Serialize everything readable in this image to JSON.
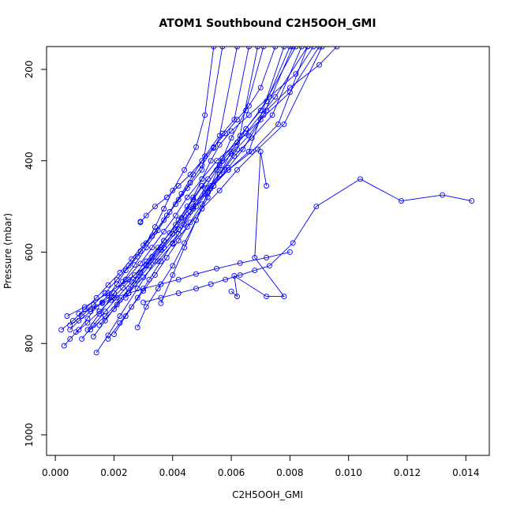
{
  "chart_data": {
    "type": "line",
    "title": "ATOM1 Southbound C2H5OOH_GMI",
    "xlabel": "C2H5OOH_GMI",
    "ylabel": "Pressure (mbar)",
    "x_ticks": [
      "0.000",
      "0.002",
      "0.004",
      "0.006",
      "0.008",
      "0.010",
      "0.012",
      "0.014"
    ],
    "y_ticks": [
      "200",
      "400",
      "600",
      "800",
      "1000"
    ],
    "xlim": [
      -0.0003,
      0.0148
    ],
    "ylim": [
      1045,
      150
    ],
    "y_reversed": true,
    "grid": false,
    "legend": "none",
    "markers": "open-circle",
    "series": [
      {
        "color": "#0000ff",
        "x": [
          0.0014,
          0.0018,
          0.0022,
          0.0028,
          0.0034,
          0.0042,
          0.0047,
          0.0051,
          0.0055,
          0.006,
          0.0066,
          0.0072,
          0.008,
          0.009,
          0.0096
        ],
        "y": [
          820,
          782,
          740,
          680,
          620,
          560,
          500,
          460,
          420,
          385,
          345,
          290,
          240,
          190,
          150
        ]
      },
      {
        "color": "#0000ff",
        "x": [
          0.0003,
          0.0005,
          0.0008,
          0.0011,
          0.0014,
          0.0018,
          0.0021,
          0.0024,
          0.0028,
          0.0031,
          0.0034,
          0.0037,
          0.004,
          0.0044,
          0.0048,
          0.0051,
          0.0054
        ],
        "y": [
          805,
          790,
          770,
          745,
          720,
          695,
          670,
          640,
          610,
          580,
          545,
          505,
          465,
          420,
          370,
          300,
          150
        ]
      },
      {
        "color": "#0000ff",
        "x": [
          0.0005,
          0.0008,
          0.0012,
          0.0016,
          0.002,
          0.0024,
          0.0029,
          0.0033,
          0.0037,
          0.0041,
          0.0045,
          0.005,
          0.0055,
          0.0062,
          0.007,
          0.008,
          0.009
        ],
        "y": [
          770,
          750,
          730,
          710,
          690,
          660,
          625,
          590,
          555,
          520,
          480,
          440,
          400,
          360,
          310,
          250,
          150
        ]
      },
      {
        "color": "#0000ff",
        "x": [
          0.0004,
          0.001,
          0.0018,
          0.0025,
          0.0031,
          0.0036,
          0.004,
          0.0044,
          0.0047,
          0.005,
          0.0053,
          0.0056,
          0.006,
          0.0066,
          0.0073,
          0.0082,
          0.0088
        ],
        "y": [
          740,
          720,
          690,
          660,
          630,
          595,
          560,
          520,
          480,
          440,
          400,
          365,
          335,
          300,
          260,
          210,
          150
        ]
      },
      {
        "color": "#0000ff",
        "x": [
          0.0013,
          0.0017,
          0.0021,
          0.0025,
          0.0029,
          0.0033,
          0.0037,
          0.0041,
          0.0045,
          0.005,
          0.0057,
          0.0065,
          0.0075,
          0.0086
        ],
        "y": [
          785,
          750,
          715,
          680,
          645,
          610,
          575,
          540,
          500,
          455,
          400,
          340,
          260,
          150
        ]
      },
      {
        "color": "#0000ff",
        "x": [
          0.0028,
          0.0031,
          0.0035,
          0.004,
          0.0044,
          0.0048,
          0.0052,
          0.0056,
          0.006,
          0.0065,
          0.0072,
          0.008
        ],
        "y": [
          765,
          720,
          680,
          630,
          580,
          530,
          480,
          430,
          380,
          330,
          270,
          150
        ]
      },
      {
        "color": "#0000ff",
        "x": [
          0.003,
          0.0036,
          0.0042,
          0.0048,
          0.0053,
          0.0058,
          0.0063,
          0.0068,
          0.0073,
          0.0081,
          0.0089,
          0.0104,
          0.0118,
          0.0132,
          0.0142
        ],
        "y": [
          710,
          700,
          690,
          680,
          670,
          660,
          650,
          640,
          630,
          580,
          500,
          440,
          488,
          475,
          488
        ]
      },
      {
        "color": "#0000ff",
        "x": [
          0.0029,
          0.0029,
          0.0031,
          0.0034,
          0.0038,
          0.0042,
          0.0046,
          0.005,
          0.0054,
          0.0058,
          0.0062,
          0.0066,
          0.007,
          0.0075
        ],
        "y": [
          533,
          535,
          520,
          500,
          480,
          455,
          430,
          400,
          370,
          340,
          310,
          280,
          240,
          150
        ]
      },
      {
        "color": "#0000ff",
        "x": [
          0.006,
          0.0062,
          0.0061,
          0.0072,
          0.0078,
          0.0068,
          0.007,
          0.0072
        ],
        "y": [
          686,
          697,
          652,
          697,
          697,
          612,
          380,
          455
        ]
      },
      {
        "color": "#0000ff",
        "x": [
          0.0008,
          0.0012,
          0.0016,
          0.002,
          0.0025,
          0.003,
          0.0036,
          0.0042,
          0.0048,
          0.0055,
          0.0063,
          0.0072,
          0.008
        ],
        "y": [
          735,
          725,
          712,
          700,
          690,
          680,
          670,
          660,
          648,
          636,
          624,
          612,
          600
        ]
      },
      {
        "color": "#0000ff",
        "x": [
          0.0002,
          0.0006,
          0.001,
          0.0014,
          0.0018,
          0.0022,
          0.0026,
          0.003,
          0.0034,
          0.0038,
          0.0042,
          0.0046,
          0.005,
          0.0054,
          0.0057,
          0.0061,
          0.0066
        ],
        "y": [
          770,
          750,
          725,
          700,
          672,
          645,
          615,
          585,
          555,
          520,
          485,
          448,
          410,
          372,
          340,
          310,
          150
        ]
      },
      {
        "color": "#0000ff",
        "x": [
          0.0012,
          0.0017,
          0.0022,
          0.0027,
          0.0032,
          0.0037,
          0.0042,
          0.0047,
          0.0052,
          0.0057,
          0.0062,
          0.0069
        ],
        "y": [
          770,
          740,
          705,
          670,
          630,
          590,
          550,
          505,
          460,
          420,
          375,
          150
        ]
      },
      {
        "color": "#0000ff",
        "x": [
          0.002,
          0.0024,
          0.0028,
          0.0032,
          0.0036,
          0.004,
          0.0044,
          0.0048,
          0.0053,
          0.0059,
          0.0066,
          0.0078
        ],
        "y": [
          780,
          740,
          700,
          660,
          620,
          580,
          540,
          500,
          460,
          420,
          380,
          150
        ]
      },
      {
        "color": "#0000ff",
        "x": [
          0.0005,
          0.0009,
          0.0013,
          0.0017,
          0.0021,
          0.0025,
          0.0029,
          0.0033,
          0.0037,
          0.0041,
          0.0045,
          0.005,
          0.0057
        ],
        "y": [
          760,
          740,
          715,
          690,
          660,
          630,
          598,
          565,
          530,
          495,
          460,
          420,
          150
        ]
      },
      {
        "color": "#0000ff",
        "x": [
          0.0007,
          0.0011,
          0.0015,
          0.0019,
          0.0023,
          0.0027,
          0.0031,
          0.0035,
          0.0039,
          0.0043,
          0.0048,
          0.0053,
          0.0059,
          0.0067,
          0.0076,
          0.0086
        ],
        "y": [
          775,
          755,
          730,
          705,
          678,
          650,
          620,
          590,
          558,
          525,
          490,
          455,
          420,
          380,
          320,
          150
        ]
      },
      {
        "color": "#0000ff",
        "x": [
          0.0018,
          0.0022,
          0.0026,
          0.003,
          0.0034,
          0.0038,
          0.0042,
          0.0046,
          0.005,
          0.0054,
          0.0059,
          0.0064,
          0.0071,
          0.0081
        ],
        "y": [
          790,
          755,
          720,
          685,
          650,
          612,
          575,
          535,
          495,
          455,
          415,
          375,
          300,
          150
        ]
      },
      {
        "color": "#0000ff",
        "x": [
          0.0036,
          0.004,
          0.0044,
          0.0048,
          0.0052,
          0.0056,
          0.006,
          0.0065,
          0.0071
        ],
        "y": [
          712,
          650,
          590,
          530,
          470,
          410,
          350,
          290,
          150
        ]
      },
      {
        "color": "#0000ff",
        "x": [
          0.0024,
          0.0028,
          0.0032,
          0.0037,
          0.0042,
          0.0047,
          0.0052,
          0.0057,
          0.0063,
          0.007,
          0.0082
        ],
        "y": [
          700,
          660,
          620,
          575,
          530,
          485,
          440,
          395,
          345,
          290,
          150
        ]
      },
      {
        "color": "#0000ff",
        "x": [
          0.0011,
          0.0015,
          0.0019,
          0.0023,
          0.0027,
          0.0031,
          0.0035,
          0.0039,
          0.0043,
          0.0047,
          0.0051,
          0.0056,
          0.0062
        ],
        "y": [
          770,
          735,
          700,
          665,
          628,
          590,
          552,
          512,
          472,
          430,
          390,
          345,
          150
        ]
      },
      {
        "color": "#0000ff",
        "x": [
          0.0009,
          0.0013,
          0.0017,
          0.0021,
          0.0026,
          0.0031,
          0.0036,
          0.0041,
          0.0046,
          0.0051,
          0.0056,
          0.0061,
          0.0067,
          0.0074,
          0.0084
        ],
        "y": [
          790,
          760,
          730,
          700,
          665,
          628,
          590,
          552,
          512,
          472,
          430,
          390,
          350,
          300,
          150
        ]
      },
      {
        "color": "#0000ff",
        "x": [
          0.0015,
          0.002,
          0.0025,
          0.003,
          0.0035,
          0.004,
          0.0045,
          0.005,
          0.0056,
          0.0062,
          0.0069,
          0.0078,
          0.0091
        ],
        "y": [
          760,
          725,
          690,
          655,
          620,
          582,
          545,
          505,
          465,
          420,
          375,
          320,
          150
        ]
      }
    ]
  }
}
